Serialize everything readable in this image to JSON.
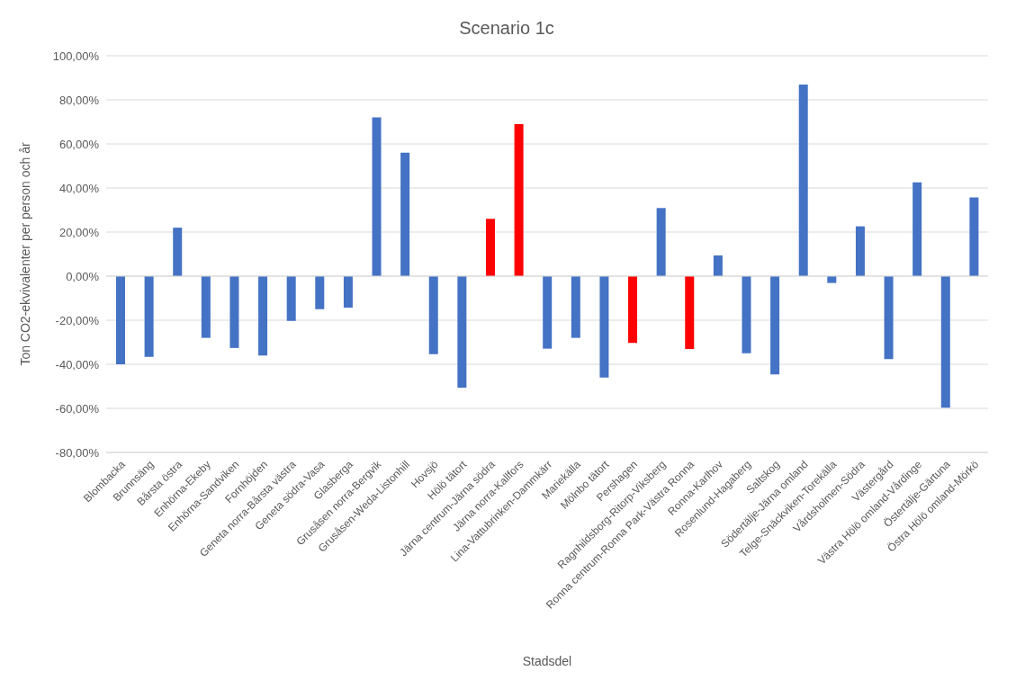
{
  "chart_data": {
    "type": "bar",
    "title": "Scenario 1c",
    "xlabel": "Stadsdel",
    "ylabel": "Ton CO2-ekvivalenter per person och år",
    "categories": [
      "Blombacka",
      "Brunnsäng",
      "Bårsta östra",
      "Enhörna-Ekeby",
      "Enhörna-Sandviken",
      "Fornhöjden",
      "Geneta norra-Bårsta västra",
      "Geneta södra-Vasa",
      "Glasberga",
      "Grusåsen norra-Bergvik",
      "Grusåsen-Weda-Listonhill",
      "Hovsjö",
      "Hölö tätort",
      "Järna centrum-Järna södra",
      "Järna norra-Kallfors",
      "Lina-Vattubrinken-Dammkärr",
      "Mariekälla",
      "Mölnbo tätort",
      "Pershagen",
      "Ragnhildsborg-Ritorp-Viksberg",
      "Ronna centrum-Ronna Park-Västra Ronna",
      "Ronna-Karlhov",
      "Rosenlund-Hagaberg",
      "Saltskog",
      "Södertälje-Järna omland",
      "Telge-Snäckviken-Torekälla",
      "Vårdsholmen-Södra",
      "Västergård",
      "Västra Hölö omland-Vårdinge",
      "Östertälje-Gärtuna",
      "Östra Hölö omland-Mörkö"
    ],
    "values": [
      -40,
      -36.6,
      22,
      -28,
      -32.6,
      -36,
      -20.3,
      -15,
      -14.3,
      72,
      56,
      -35.4,
      -50.6,
      26,
      69,
      -32.9,
      -28,
      -46,
      -30.3,
      30.9,
      -33.1,
      9.4,
      -35,
      -44.6,
      86.9,
      -3.1,
      22.6,
      -37.7,
      42.6,
      -59.7,
      35.7
    ],
    "colors": [
      "#4472c4",
      "#4472c4",
      "#4472c4",
      "#4472c4",
      "#4472c4",
      "#4472c4",
      "#4472c4",
      "#4472c4",
      "#4472c4",
      "#4472c4",
      "#4472c4",
      "#4472c4",
      "#4472c4",
      "#ff0000",
      "#ff0000",
      "#4472c4",
      "#4472c4",
      "#4472c4",
      "#ff0000",
      "#4472c4",
      "#ff0000",
      "#4472c4",
      "#4472c4",
      "#4472c4",
      "#4472c4",
      "#4472c4",
      "#4472c4",
      "#4472c4",
      "#4472c4",
      "#4472c4",
      "#4472c4"
    ],
    "ylim": [
      -80,
      100
    ],
    "yticks": [
      {
        "value": -80,
        "label": "-80,00%"
      },
      {
        "value": -60,
        "label": "-60,00%"
      },
      {
        "value": -40,
        "label": "-40,00%"
      },
      {
        "value": -20,
        "label": "-20,00%"
      },
      {
        "value": 0,
        "label": "0,00%"
      },
      {
        "value": 20,
        "label": "20,00%"
      },
      {
        "value": 40,
        "label": "40,00%"
      },
      {
        "value": 60,
        "label": "60,00%"
      },
      {
        "value": 80,
        "label": "80,00%"
      },
      {
        "value": 100,
        "label": "100,00%"
      }
    ],
    "grid": "y"
  }
}
